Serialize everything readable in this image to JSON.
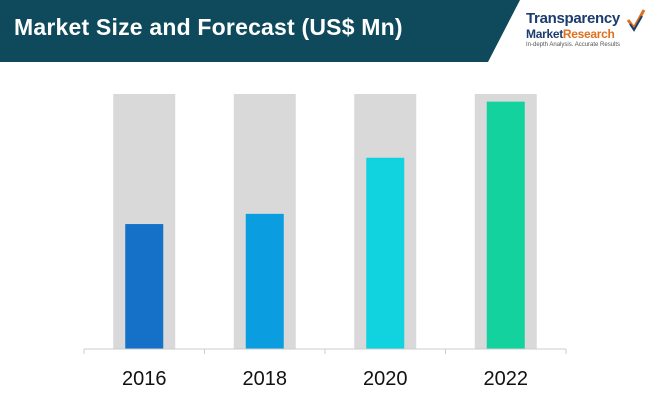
{
  "header": {
    "title": "Market Size and Forecast (US$ Mn)",
    "banner_color": "#0e4a5b"
  },
  "logo": {
    "line1": "Transparency",
    "line2a": "Market",
    "line2b": "Research",
    "tagline": "In-depth Analysis. Accurate Results",
    "check_icon": "check-icon"
  },
  "chart_data": {
    "type": "bar",
    "title": "Market Size and Forecast (US$ Mn)",
    "categories": [
      "2016",
      "2018",
      "2020",
      "2022"
    ],
    "values": [
      49,
      53,
      75,
      97
    ],
    "ylim": [
      0,
      100
    ],
    "background_bars": true,
    "background_bar_color": "#d9d9d9",
    "colors": [
      "#1570c8",
      "#0a9ee0",
      "#10d3df",
      "#14d29e"
    ],
    "grid": false,
    "legend": "none"
  }
}
